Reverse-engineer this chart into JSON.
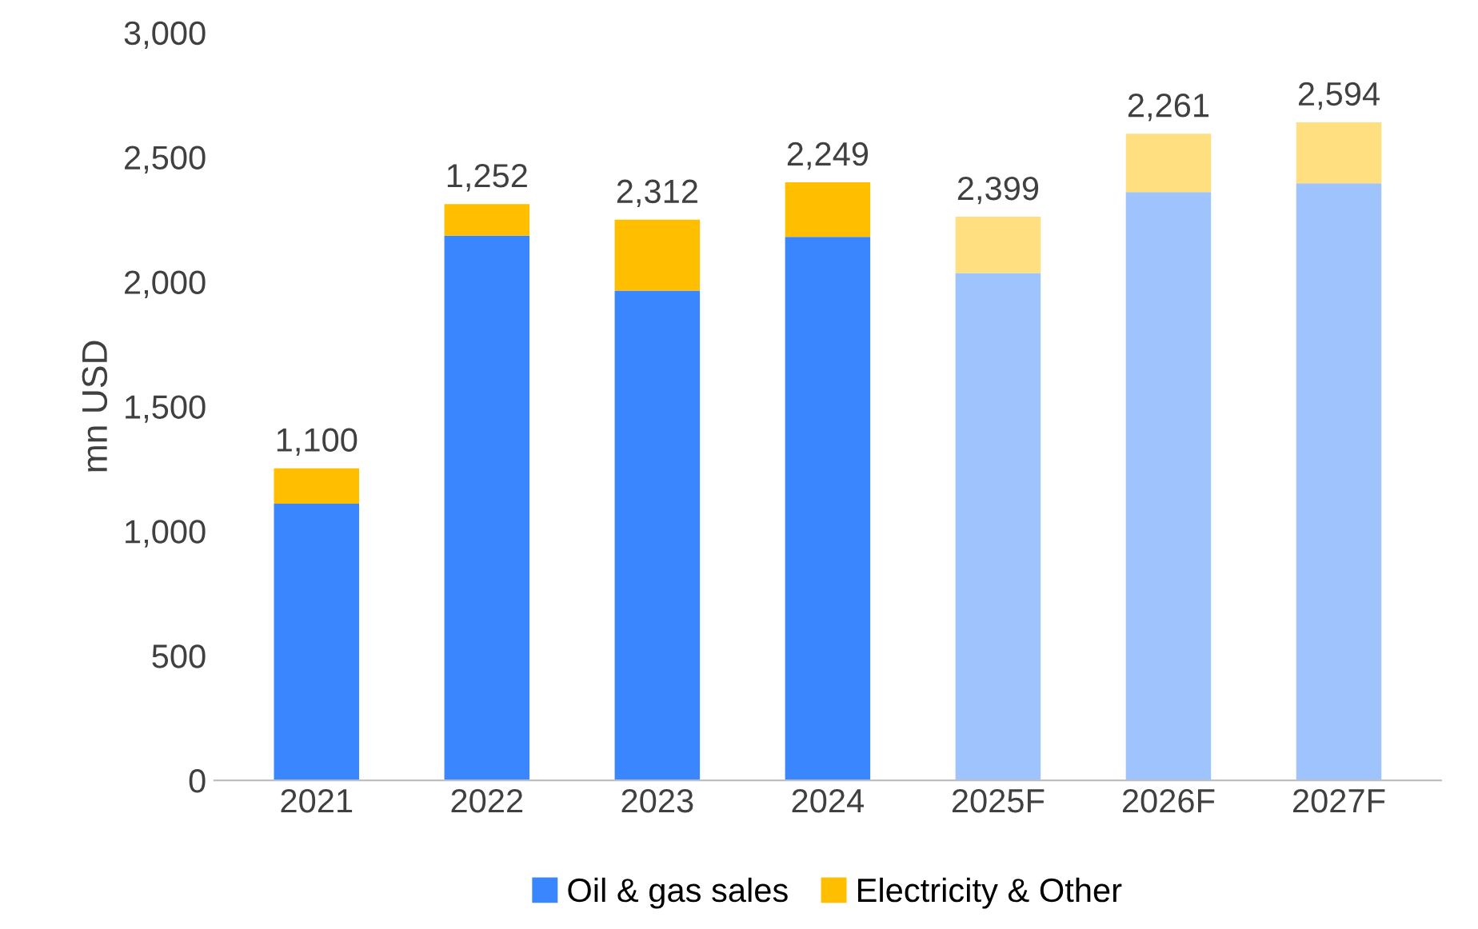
{
  "chart_data": {
    "type": "bar",
    "stacked": true,
    "ylabel": "mn USD",
    "categories": [
      "2021",
      "2022",
      "2023",
      "2024",
      "2025F",
      "2026F",
      "2027F"
    ],
    "series": [
      {
        "name": "Oil & gas sales",
        "color": "#3a86ff",
        "colors": [
          "#3a86ff",
          "#3a86ff",
          "#3a86ff",
          "#3a86ff",
          "#9ec3fd",
          "#9ec3fd",
          "#9ec3fd"
        ],
        "values": [
          1110,
          2185,
          1965,
          2180,
          2035,
          2360,
          2395
        ]
      },
      {
        "name": "Electricity & Other",
        "color": "#ffbf00",
        "colors": [
          "#ffbf00",
          "#ffbf00",
          "#ffbf00",
          "#ffbf00",
          "#ffdf80",
          "#ffdf80",
          "#ffdf80"
        ],
        "values": [
          142,
          127,
          284,
          219,
          226,
          234,
          245
        ]
      }
    ],
    "annotations": [
      {
        "text": "1,100",
        "x": "2021",
        "y": 1252
      },
      {
        "text": "1,252",
        "x": "2022",
        "y": 2312
      },
      {
        "text": "2,312",
        "x": "2023",
        "y": 2249
      },
      {
        "text": "2,249",
        "x": "2024",
        "y": 2399
      },
      {
        "text": "2,399",
        "x": "2025F",
        "y": 2261
      },
      {
        "text": "2,261",
        "x": "2026F",
        "y": 2594
      },
      {
        "text": "2,594",
        "x": "2027F",
        "y": 2640
      }
    ],
    "ylim": [
      0,
      3000
    ],
    "yticks": [
      0,
      500,
      {
        "value": 1000,
        "label": "1,000"
      },
      {
        "value": 1500,
        "label": "1,500"
      },
      {
        "value": 2000,
        "label": "2,000"
      },
      {
        "value": 2500,
        "label": "2,500"
      },
      {
        "value": 3000,
        "label": "3,000"
      }
    ],
    "grid": false,
    "legend": "bottom"
  }
}
